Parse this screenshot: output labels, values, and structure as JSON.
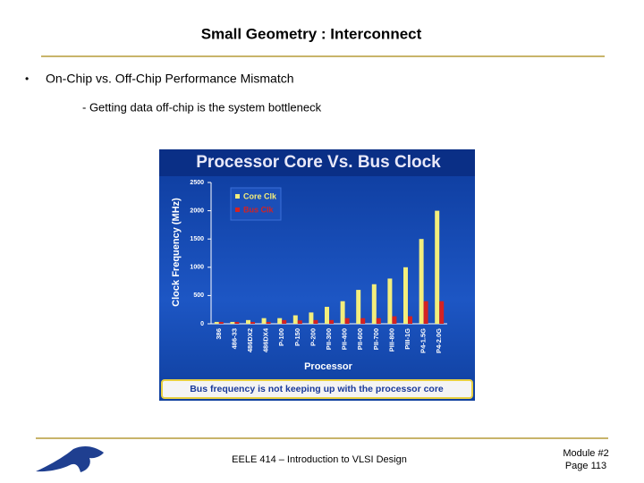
{
  "header": {
    "title": "Small Geometry : Interconnect"
  },
  "bullet": {
    "marker": "•",
    "text": "On-Chip vs. Off-Chip Performance Mismatch",
    "sub": "- Getting data off-chip is the system bottleneck"
  },
  "chart_data": {
    "type": "bar",
    "title": "Processor Core Vs. Bus Clock",
    "y_label": "Clock Frequency (MHz)",
    "x_label": "Processor",
    "categories": [
      "386",
      "486-33",
      "486DX2",
      "486DX4",
      "P-100",
      "P-150",
      "P-200",
      "PII-300",
      "PII-400",
      "PII-600",
      "PII-700",
      "PIII-800",
      "PIII-1G",
      "P4-1.5G",
      "P4-2.0G"
    ],
    "series": [
      {
        "name": "Core Clk",
        "color": "#f3ee7c",
        "values": [
          33,
          33,
          66,
          100,
          100,
          150,
          200,
          300,
          400,
          600,
          700,
          800,
          1000,
          1500,
          2000
        ]
      },
      {
        "name": "Bus Clk",
        "color": "#d42222",
        "values": [
          33,
          33,
          33,
          33,
          66,
          60,
          66,
          66,
          100,
          100,
          100,
          133,
          133,
          400,
          400
        ]
      }
    ],
    "ylim": [
      0,
      2500
    ],
    "yticks": [
      0,
      500,
      1000,
      1500,
      2000,
      2500
    ],
    "legend": "upper left",
    "caption": "Bus frequency is not keeping up with the processor core"
  },
  "footer": {
    "course": "EELE 414 – Introduction to VLSI Design",
    "module": "Module #2",
    "page": "Page 113"
  }
}
